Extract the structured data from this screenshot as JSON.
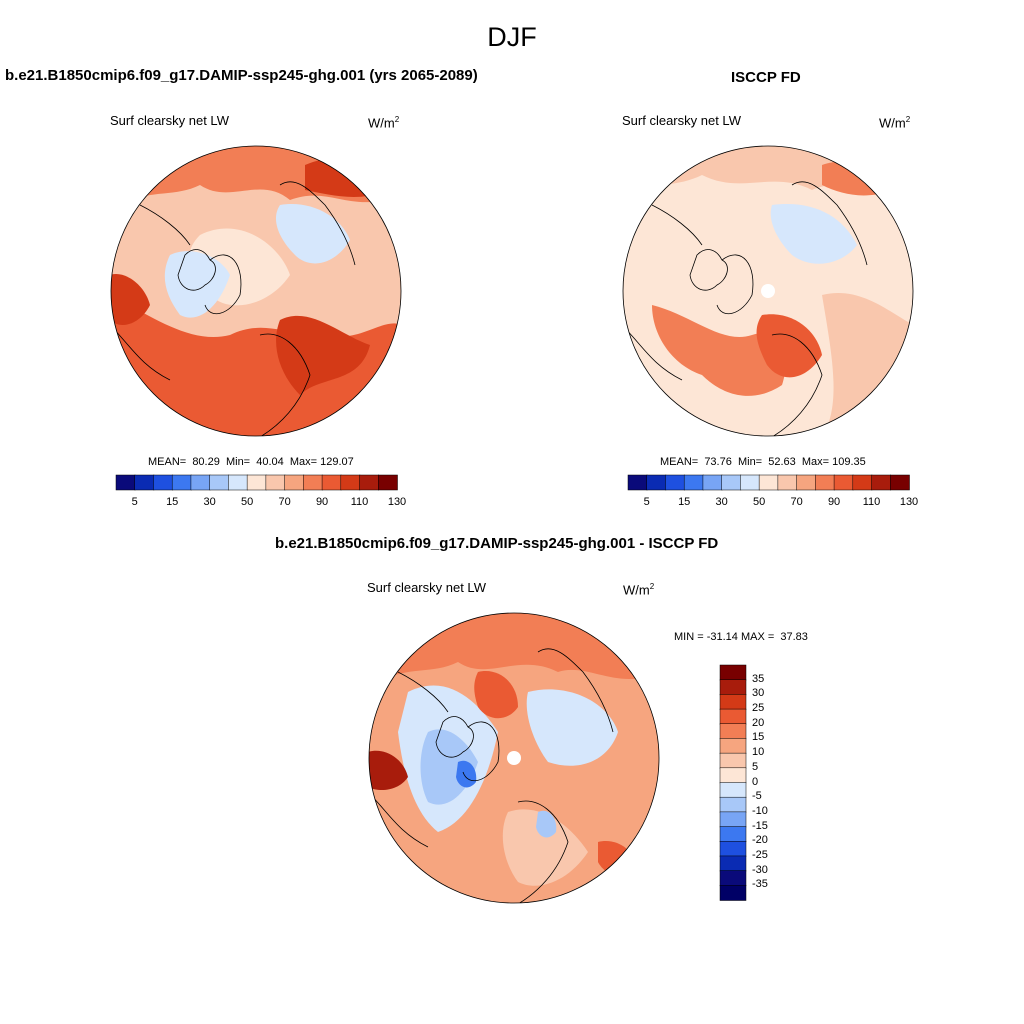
{
  "figure": {
    "season": "DJF"
  },
  "panels": [
    {
      "title": "b.e21.B1850cmip6.f09_g17.DAMIP-ssp245-ghg.001 (yrs 2065-2089)",
      "variable": "Surf clearsky net LW",
      "units_base": "W/m",
      "units_exp": "2",
      "stats": "MEAN=  80.29  Min=  40.04  Max= 129.07",
      "colorbar_labels": [
        "5",
        "15",
        "30",
        "50",
        "70",
        "90",
        "110",
        "130"
      ]
    },
    {
      "title": "ISCCP FD",
      "variable": "Surf clearsky net LW",
      "units_base": "W/m",
      "units_exp": "2",
      "stats": "MEAN=  73.76  Min=  52.63  Max= 109.35",
      "colorbar_labels": [
        "5",
        "15",
        "30",
        "50",
        "70",
        "90",
        "110",
        "130"
      ]
    },
    {
      "title": "b.e21.B1850cmip6.f09_g17.DAMIP-ssp245-ghg.001 - ISCCP FD",
      "variable": "Surf clearsky net LW",
      "units_base": "W/m",
      "units_exp": "2",
      "stats": "MIN = -31.14 MAX =  37.83",
      "colorbar_labels": [
        "35",
        "30",
        "25",
        "20",
        "15",
        "10",
        "5",
        "0",
        "-5",
        "-10",
        "-15",
        "-20",
        "-25",
        "-30",
        "-35"
      ]
    }
  ],
  "colors": {
    "abs_scale": [
      "#0a0a7a",
      "#0a2bb3",
      "#1e50e0",
      "#3c78f0",
      "#78a5f5",
      "#a8c8f8",
      "#d6e7fc",
      "#fde6d6",
      "#f9c7ad",
      "#f6a57f",
      "#f27e55",
      "#ea5a33",
      "#d43a17",
      "#a81c0c",
      "#780000"
    ],
    "diff_scale": [
      "#780000",
      "#a81c0c",
      "#d43a17",
      "#ea5a33",
      "#f27e55",
      "#f6a57f",
      "#f9c7ad",
      "#fde6d6",
      "#d6e7fc",
      "#a8c8f8",
      "#78a5f5",
      "#3c78f0",
      "#1e50e0",
      "#0a2bb3",
      "#0a0a7a",
      "#000066"
    ]
  }
}
